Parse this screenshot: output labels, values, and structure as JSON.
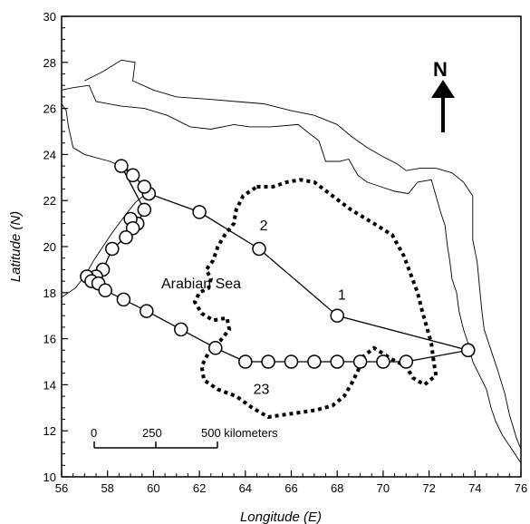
{
  "chart_data": {
    "type": "map",
    "xlabel": "Longitude (E)",
    "ylabel": "Latitude (N)",
    "xlim": [
      56,
      76
    ],
    "ylim": [
      10,
      30
    ],
    "x_ticks": [
      56,
      58,
      60,
      62,
      64,
      66,
      68,
      70,
      72,
      74,
      76
    ],
    "y_ticks": [
      10,
      12,
      14,
      16,
      18,
      20,
      22,
      24,
      26,
      28,
      30
    ],
    "north_label": "N",
    "region_label": "Arabian Sea",
    "scale_bar": {
      "labels": [
        "0",
        "250",
        "500 kilometers"
      ],
      "km": [
        0,
        250,
        500
      ]
    },
    "track_labels": [
      {
        "text": "1",
        "lon": 68.2,
        "lat": 17.7
      },
      {
        "text": "2",
        "lon": 64.8,
        "lat": 20.7
      },
      {
        "text": "23",
        "lon": 64.7,
        "lat": 13.6
      }
    ],
    "track": [
      {
        "lon": 73.7,
        "lat": 15.5
      },
      {
        "lon": 68.0,
        "lat": 17.0
      },
      {
        "lon": 64.6,
        "lat": 19.9
      },
      {
        "lon": 62.0,
        "lat": 21.5
      },
      {
        "lon": 59.8,
        "lat": 22.3
      },
      {
        "lon": 59.6,
        "lat": 22.6
      },
      {
        "lon": 59.1,
        "lat": 23.1
      },
      {
        "lon": 58.6,
        "lat": 23.5
      },
      {
        "lon": 59.6,
        "lat": 21.6
      },
      {
        "lon": 59.3,
        "lat": 21.0
      },
      {
        "lon": 59.0,
        "lat": 21.2
      },
      {
        "lon": 59.1,
        "lat": 20.8
      },
      {
        "lon": 58.8,
        "lat": 20.4
      },
      {
        "lon": 58.2,
        "lat": 19.9
      },
      {
        "lon": 57.8,
        "lat": 19.0
      },
      {
        "lon": 57.5,
        "lat": 18.7
      },
      {
        "lon": 57.1,
        "lat": 18.7
      },
      {
        "lon": 57.3,
        "lat": 18.5
      },
      {
        "lon": 57.6,
        "lat": 18.4
      },
      {
        "lon": 57.9,
        "lat": 18.1
      },
      {
        "lon": 58.7,
        "lat": 17.7
      },
      {
        "lon": 59.7,
        "lat": 17.2
      },
      {
        "lon": 61.2,
        "lat": 16.4
      },
      {
        "lon": 62.7,
        "lat": 15.6
      },
      {
        "lon": 64.0,
        "lat": 15.0
      },
      {
        "lon": 65.0,
        "lat": 15.0
      },
      {
        "lon": 66.0,
        "lat": 15.0
      },
      {
        "lon": 67.0,
        "lat": 15.0
      },
      {
        "lon": 68.0,
        "lat": 15.0
      },
      {
        "lon": 69.0,
        "lat": 15.0
      },
      {
        "lon": 70.0,
        "lat": 15.0
      },
      {
        "lon": 71.0,
        "lat": 15.0
      },
      {
        "lon": 73.7,
        "lat": 15.5
      }
    ],
    "dashed_region": [
      [
        64.5,
        22.6
      ],
      [
        65.2,
        22.6
      ],
      [
        65.8,
        22.8
      ],
      [
        66.4,
        22.9
      ],
      [
        67.0,
        22.8
      ],
      [
        67.8,
        22.2
      ],
      [
        68.6,
        21.6
      ],
      [
        69.6,
        21.0
      ],
      [
        70.4,
        20.5
      ],
      [
        70.9,
        19.6
      ],
      [
        71.2,
        18.8
      ],
      [
        71.5,
        18.0
      ],
      [
        71.7,
        17.2
      ],
      [
        71.9,
        16.5
      ],
      [
        72.1,
        15.8
      ],
      [
        72.2,
        15.0
      ],
      [
        72.3,
        14.4
      ],
      [
        71.8,
        14.0
      ],
      [
        71.3,
        14.3
      ],
      [
        71.0,
        14.8
      ],
      [
        70.4,
        15.1
      ],
      [
        69.6,
        15.6
      ],
      [
        69.1,
        15.2
      ],
      [
        68.9,
        14.6
      ],
      [
        68.6,
        14.0
      ],
      [
        68.3,
        13.5
      ],
      [
        67.8,
        13.1
      ],
      [
        67.1,
        12.9
      ],
      [
        66.4,
        12.8
      ],
      [
        65.7,
        12.7
      ],
      [
        65.0,
        12.6
      ],
      [
        64.3,
        13.0
      ],
      [
        63.6,
        13.5
      ],
      [
        62.8,
        13.8
      ],
      [
        62.2,
        14.2
      ],
      [
        62.1,
        14.8
      ],
      [
        62.4,
        15.4
      ],
      [
        62.9,
        15.9
      ],
      [
        63.3,
        16.4
      ],
      [
        63.2,
        16.9
      ],
      [
        62.6,
        16.8
      ],
      [
        62.1,
        17.1
      ],
      [
        61.8,
        17.6
      ],
      [
        62.0,
        18.0
      ],
      [
        62.4,
        18.2
      ],
      [
        62.5,
        18.6
      ],
      [
        62.3,
        19.0
      ],
      [
        62.6,
        19.4
      ],
      [
        62.8,
        20.0
      ],
      [
        63.1,
        20.5
      ],
      [
        63.5,
        21.0
      ],
      [
        63.6,
        21.6
      ],
      [
        63.9,
        22.2
      ],
      [
        64.5,
        22.6
      ]
    ],
    "coastlines": [
      [
        [
          56.0,
          17.8
        ],
        [
          56.6,
          18.2
        ],
        [
          57.0,
          18.7
        ],
        [
          57.4,
          19.4
        ],
        [
          57.8,
          20.0
        ],
        [
          58.2,
          20.6
        ],
        [
          58.8,
          21.4
        ],
        [
          59.2,
          21.9
        ],
        [
          59.8,
          22.4
        ],
        [
          59.4,
          22.8
        ],
        [
          58.8,
          23.4
        ],
        [
          58.1,
          23.7
        ],
        [
          57.0,
          24.0
        ],
        [
          56.5,
          24.3
        ],
        [
          56.3,
          25.2
        ],
        [
          56.2,
          25.9
        ],
        [
          56.0,
          26.2
        ]
      ],
      [
        [
          56.0,
          26.8
        ],
        [
          56.5,
          26.9
        ],
        [
          57.2,
          27.0
        ],
        [
          57.5,
          26.3
        ],
        [
          58.6,
          26.1
        ],
        [
          59.6,
          26.0
        ],
        [
          60.6,
          25.7
        ],
        [
          61.6,
          25.2
        ],
        [
          62.5,
          25.1
        ],
        [
          63.5,
          25.3
        ],
        [
          64.2,
          25.2
        ],
        [
          65.1,
          25.2
        ],
        [
          66.3,
          25.3
        ],
        [
          66.8,
          24.9
        ],
        [
          67.2,
          24.6
        ],
        [
          67.5,
          23.7
        ],
        [
          68.1,
          23.7
        ],
        [
          68.5,
          23.8
        ],
        [
          68.9,
          23.1
        ],
        [
          69.3,
          22.8
        ],
        [
          69.9,
          22.6
        ],
        [
          70.5,
          22.4
        ],
        [
          71.1,
          22.3
        ],
        [
          71.5,
          22.8
        ],
        [
          72.1,
          22.9
        ],
        [
          72.5,
          21.5
        ],
        [
          72.7,
          20.9
        ],
        [
          72.8,
          20.0
        ],
        [
          72.9,
          19.4
        ],
        [
          73.0,
          18.6
        ],
        [
          73.2,
          18.0
        ],
        [
          73.3,
          17.2
        ],
        [
          73.5,
          16.4
        ],
        [
          73.7,
          15.8
        ],
        [
          73.9,
          15.0
        ],
        [
          74.2,
          14.4
        ],
        [
          74.5,
          13.8
        ],
        [
          74.7,
          13.0
        ],
        [
          74.9,
          12.4
        ],
        [
          75.2,
          11.8
        ],
        [
          75.6,
          11.2
        ],
        [
          76.0,
          10.6
        ]
      ],
      [
        [
          57.0,
          27.2
        ],
        [
          57.8,
          27.6
        ],
        [
          58.6,
          28.1
        ],
        [
          59.2,
          28.0
        ],
        [
          59.1,
          27.2
        ],
        [
          60.0,
          26.8
        ],
        [
          61.0,
          26.5
        ],
        [
          62.4,
          26.4
        ],
        [
          63.6,
          26.3
        ],
        [
          64.8,
          26.2
        ],
        [
          66.0,
          25.9
        ],
        [
          67.0,
          25.7
        ],
        [
          68.0,
          25.3
        ],
        [
          68.6,
          24.8
        ],
        [
          69.3,
          24.3
        ],
        [
          70.0,
          23.9
        ],
        [
          70.6,
          23.6
        ],
        [
          71.0,
          23.3
        ],
        [
          71.6,
          23.4
        ],
        [
          72.3,
          23.4
        ],
        [
          73.0,
          23.2
        ],
        [
          73.5,
          22.8
        ],
        [
          73.9,
          22.2
        ],
        [
          73.9,
          21.3
        ],
        [
          73.9,
          20.3
        ],
        [
          74.1,
          19.3
        ],
        [
          74.2,
          18.2
        ],
        [
          74.3,
          17.2
        ],
        [
          74.4,
          16.4
        ],
        [
          74.7,
          15.5
        ],
        [
          75.0,
          14.6
        ],
        [
          75.3,
          13.6
        ],
        [
          75.5,
          12.7
        ],
        [
          75.8,
          11.7
        ],
        [
          76.0,
          11.2
        ]
      ]
    ]
  }
}
